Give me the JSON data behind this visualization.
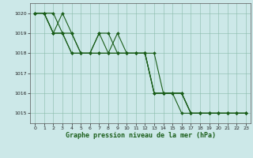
{
  "background_color": "#cce8e8",
  "plot_bg_color": "#cce8e8",
  "grid_color": "#88bbaa",
  "line_color": "#1a5e1a",
  "marker_color": "#1a5e1a",
  "xlabel": "Graphe pression niveau de la mer (hPa)",
  "xlabel_fontsize": 6.0,
  "ylim": [
    1014.5,
    1020.5
  ],
  "xlim": [
    -0.5,
    23.5
  ],
  "yticks": [
    1015,
    1016,
    1017,
    1018,
    1019,
    1020
  ],
  "xticks": [
    0,
    1,
    2,
    3,
    4,
    5,
    6,
    7,
    8,
    9,
    10,
    11,
    12,
    13,
    14,
    15,
    16,
    17,
    18,
    19,
    20,
    21,
    22,
    23
  ],
  "series": [
    [
      1020,
      1020,
      1019,
      1019,
      1018,
      1018,
      1018,
      1019,
      1018,
      1019,
      1018,
      1018,
      1018,
      1016,
      1016,
      1016,
      1016,
      1015,
      1015,
      1015,
      1015,
      1015,
      1015,
      1015
    ],
    [
      1020,
      1020,
      1019,
      1020,
      1019,
      1018,
      1018,
      1018,
      1018,
      1018,
      1018,
      1018,
      1018,
      1018,
      1016,
      1016,
      1015,
      1015,
      1015,
      1015,
      1015,
      1015,
      1015,
      1015
    ],
    [
      1020,
      1020,
      1020,
      1019,
      1018,
      1018,
      1018,
      1018,
      1018,
      1018,
      1018,
      1018,
      1018,
      1016,
      1016,
      1016,
      1016,
      1015,
      1015,
      1015,
      1015,
      1015,
      1015,
      1015
    ],
    [
      1020,
      1020,
      1019,
      1019,
      1019,
      1018,
      1018,
      1019,
      1019,
      1018,
      1018,
      1018,
      1018,
      1016,
      1016,
      1016,
      1016,
      1015,
      1015,
      1015,
      1015,
      1015,
      1015,
      1015
    ]
  ],
  "tick_fontsize": 4.5,
  "linewidth": 0.8,
  "markersize": 2.0
}
